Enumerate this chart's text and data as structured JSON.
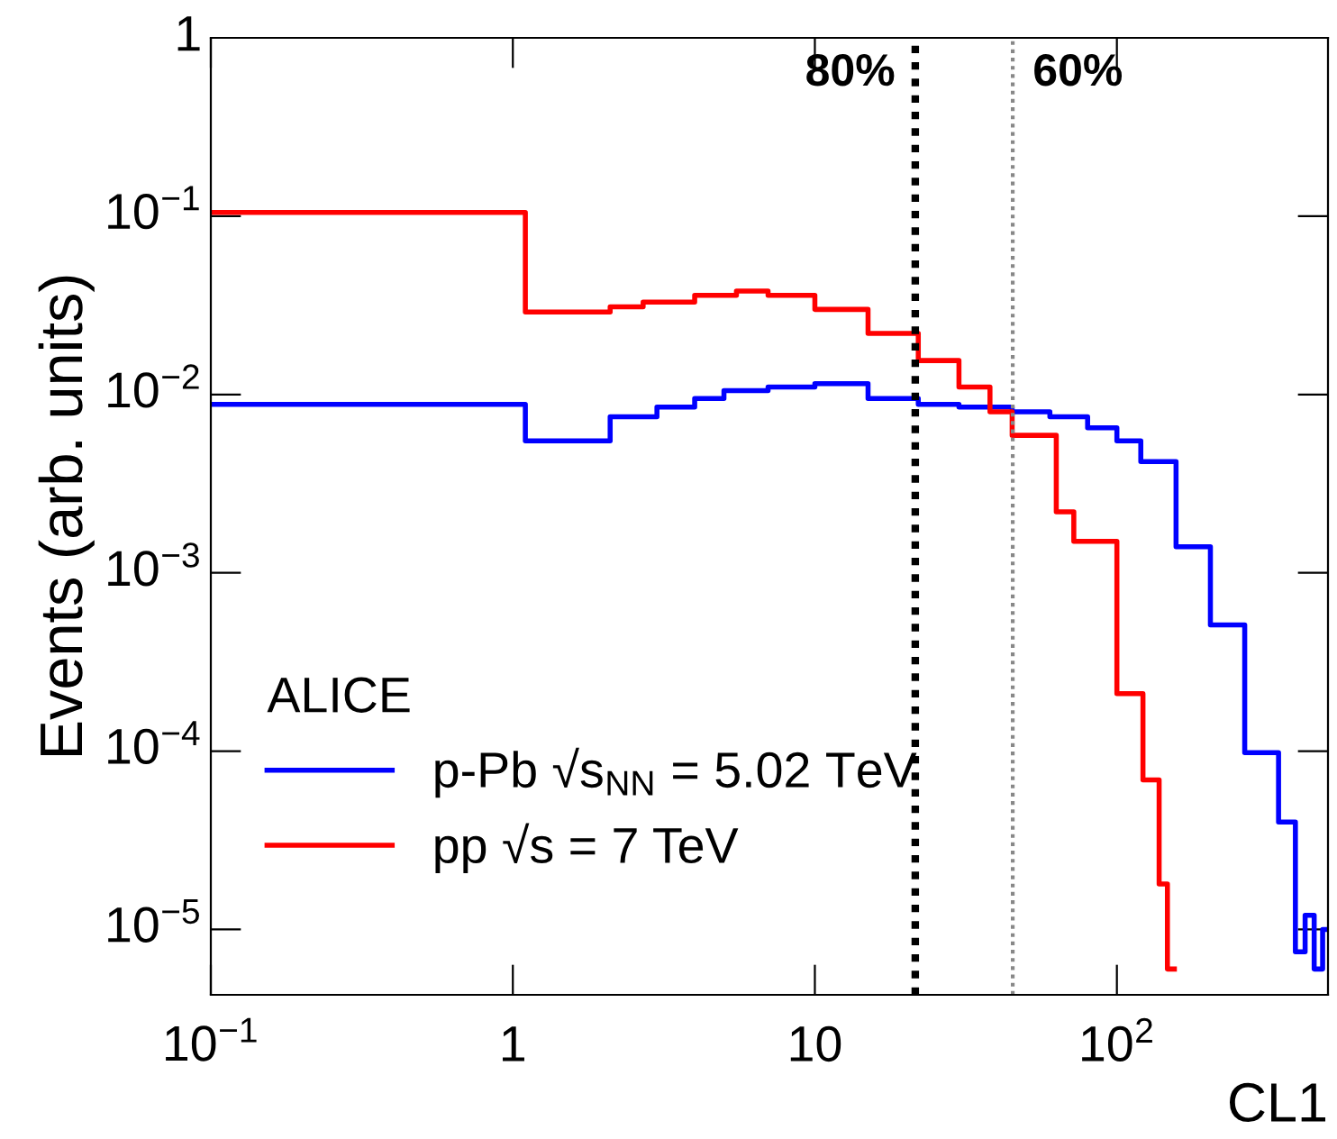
{
  "chart_data": {
    "type": "step",
    "xlabel": "CL1",
    "ylabel": "Events (arb. units)",
    "log": "xy",
    "xlim": [
      0.1,
      500
    ],
    "ylim": [
      4.3e-06,
      1
    ],
    "xticks": [
      {
        "value": 0.1,
        "label": "10$^{−1}$"
      },
      1,
      10,
      {
        "value": 100,
        "label": "10$^{2}$"
      }
    ],
    "yticks": [
      {
        "value": 1e-05,
        "label": "10$^{−5}$"
      },
      {
        "value": 0.0001,
        "label": "10$^{−4}$"
      },
      {
        "value": 0.001,
        "label": "10$^{−3}$"
      },
      {
        "value": 0.01,
        "label": "10$^{−2}$"
      },
      {
        "value": 0.1,
        "label": "10$^{−1}$"
      },
      1
    ],
    "grid": false,
    "legend": "bottom left",
    "legend_title": "ALICE",
    "series": [
      {
        "name": "p-Pb √s$_{NN}$ = 5.02 TeV",
        "color": "#0000ff",
        "x": [
          0.1,
          1.1,
          2.1,
          3,
          4,
          5,
          7,
          10,
          15,
          22,
          30,
          45,
          60,
          80,
          100,
          120,
          157,
          204,
          265,
          343,
          390,
          420,
          450,
          480,
          500
        ],
        "values": [
          0.0088,
          0.0055,
          0.0075,
          0.0085,
          0.0095,
          0.0105,
          0.011,
          0.0115,
          0.0095,
          0.0088,
          0.0085,
          0.008,
          0.0075,
          0.0065,
          0.0055,
          0.0042,
          0.0014,
          0.00051,
          9.8e-05,
          4e-05,
          7.5e-06,
          1.2e-05,
          6e-06,
          1e-05,
          1e-05
        ]
      },
      {
        "name": "pp √s = 7 TeV",
        "color": "#ff0000",
        "x": [
          0.1,
          1.1,
          2.1,
          2.7,
          4,
          5.5,
          7,
          10,
          15,
          22,
          30,
          38,
          45,
          63,
          72,
          100,
          122,
          138,
          147,
          155
        ],
        "values": [
          0.105,
          0.029,
          0.031,
          0.033,
          0.036,
          0.038,
          0.036,
          0.03,
          0.022,
          0.0155,
          0.011,
          0.008,
          0.0059,
          0.0022,
          0.0015,
          0.00021,
          6.9e-05,
          1.8e-05,
          6e-06,
          6e-06
        ]
      }
    ],
    "ref_lines": [
      {
        "axis": "x",
        "value": 21.5,
        "color": "#000000",
        "line_style": "dotted"
      },
      {
        "axis": "x",
        "value": 45.2,
        "color": "#888888",
        "line_style": "dotted"
      }
    ],
    "annotations": [
      "80%",
      "60%"
    ]
  }
}
